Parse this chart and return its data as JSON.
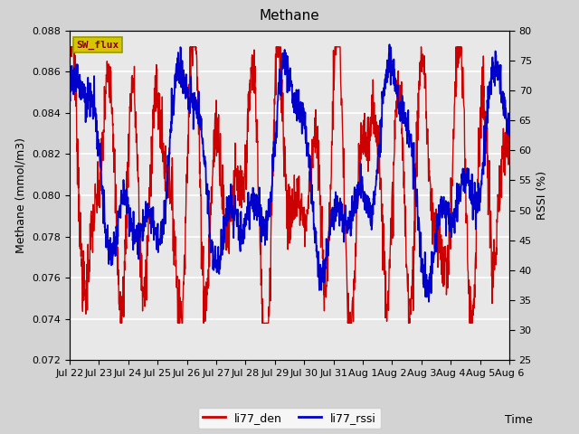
{
  "title": "Methane",
  "xlabel": "Time",
  "ylabel_left": "Methane (mmol/m3)",
  "ylabel_right": "RSSI (%)",
  "ylim_left": [
    0.072,
    0.088
  ],
  "ylim_right": [
    25,
    80
  ],
  "yticks_left": [
    0.072,
    0.074,
    0.076,
    0.078,
    0.08,
    0.082,
    0.084,
    0.086,
    0.088
  ],
  "yticks_right": [
    25,
    30,
    35,
    40,
    45,
    50,
    55,
    60,
    65,
    70,
    75,
    80
  ],
  "xtick_labels": [
    "Jul 22",
    "Jul 23",
    "Jul 24",
    "Jul 25",
    "Jul 26",
    "Jul 27",
    "Jul 28",
    "Jul 29",
    "Jul 30",
    "Jul 31",
    "Aug 1",
    "Aug 2",
    "Aug 3",
    "Aug 4",
    "Aug 5",
    "Aug 6"
  ],
  "color_red": "#cc0000",
  "color_blue": "#0000cc",
  "legend_labels": [
    "li77_den",
    "li77_rssi"
  ],
  "sw_flux_label": "SW_flux",
  "sw_flux_bg": "#d4c600",
  "sw_flux_fg": "#8b0000",
  "background_color": "#d3d3d3",
  "plot_bg": "#e8e8e8",
  "grid_color": "#ffffff",
  "title_fontsize": 11,
  "axis_fontsize": 9,
  "tick_fontsize": 8
}
